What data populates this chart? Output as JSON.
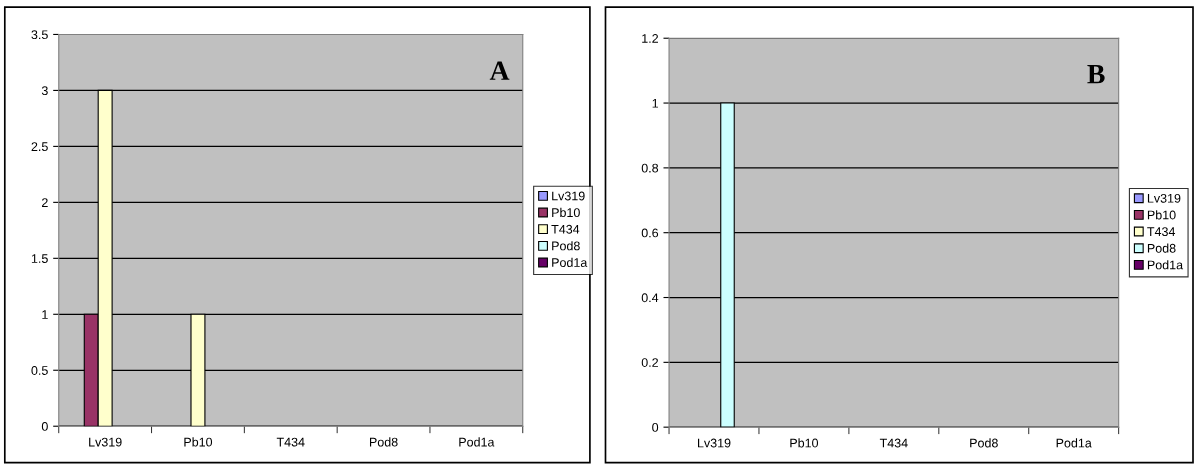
{
  "chart_data": [
    {
      "type": "bar",
      "title": "A",
      "categories": [
        "Lv319",
        "Pb10",
        "T434",
        "Pod8",
        "Pod1a"
      ],
      "series": [
        {
          "name": "Lv319",
          "color": "#9999ff",
          "values": [
            0,
            0,
            0,
            0,
            0
          ]
        },
        {
          "name": "Pb10",
          "color": "#993366",
          "values": [
            1,
            0,
            0,
            0,
            0
          ]
        },
        {
          "name": "T434",
          "color": "#ffffcc",
          "values": [
            3,
            1,
            0,
            0,
            0
          ]
        },
        {
          "name": "Pod8",
          "color": "#ccffff",
          "values": [
            0,
            0,
            0,
            0,
            0
          ]
        },
        {
          "name": "Pod1a",
          "color": "#660066",
          "values": [
            0,
            0,
            0,
            0,
            0
          ]
        }
      ],
      "ylim": [
        0,
        3.5
      ],
      "yticks": [
        0,
        0.5,
        1,
        1.5,
        2,
        2.5,
        3,
        3.5
      ],
      "grid": "y",
      "legend": "right"
    },
    {
      "type": "bar",
      "title": "B",
      "categories": [
        "Lv319",
        "Pb10",
        "T434",
        "Pod8",
        "Pod1a"
      ],
      "series": [
        {
          "name": "Lv319",
          "color": "#9999ff",
          "values": [
            0,
            0,
            0,
            0,
            0
          ]
        },
        {
          "name": "Pb10",
          "color": "#993366",
          "values": [
            0,
            0,
            0,
            0,
            0
          ]
        },
        {
          "name": "T434",
          "color": "#ffffcc",
          "values": [
            0,
            0,
            0,
            0,
            0
          ]
        },
        {
          "name": "Pod8",
          "color": "#ccffff",
          "values": [
            1,
            0,
            0,
            0,
            0
          ]
        },
        {
          "name": "Pod1a",
          "color": "#660066",
          "values": [
            0,
            0,
            0,
            0,
            0
          ]
        }
      ],
      "ylim": [
        0,
        1.2
      ],
      "yticks": [
        0,
        0.2,
        0.4,
        0.6,
        0.8,
        1,
        1.2
      ],
      "grid": "y",
      "legend": "right"
    }
  ]
}
